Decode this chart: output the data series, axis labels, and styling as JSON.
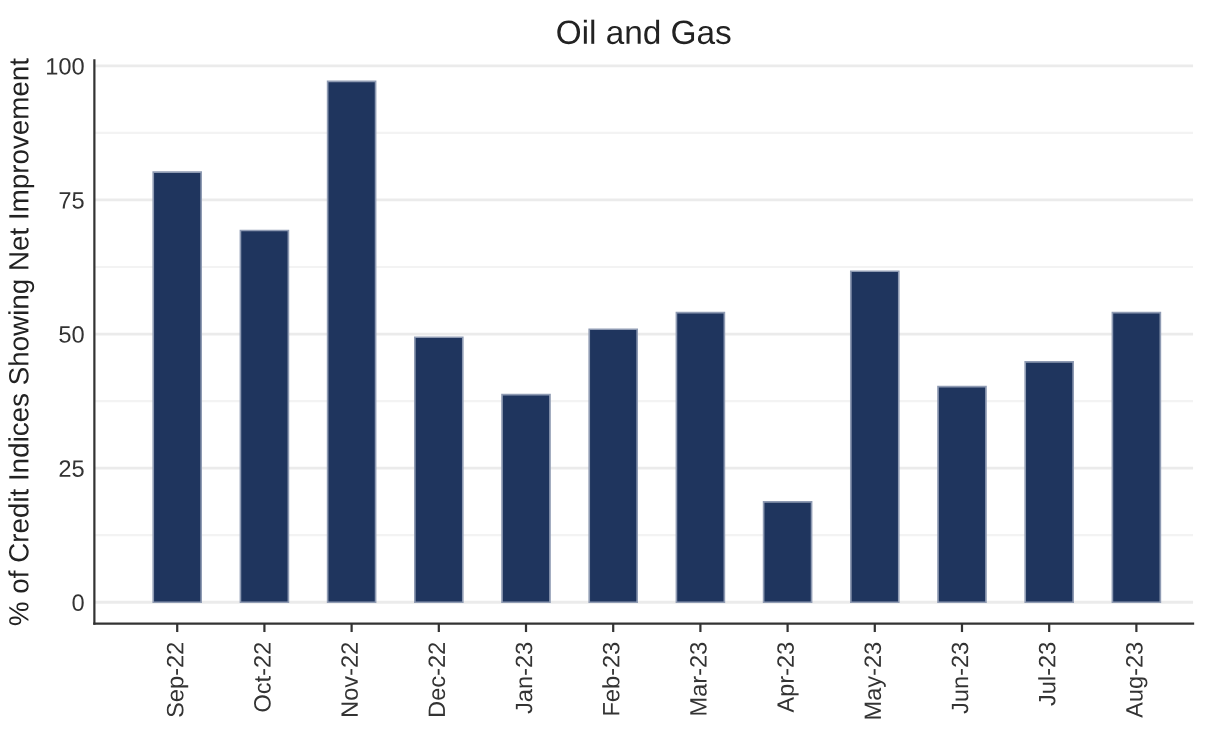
{
  "chart_data": {
    "type": "bar",
    "title": "Oil and Gas",
    "ylabel": "% of Credit Indices Showing Net Improvement",
    "categories": [
      "Sep-22",
      "Oct-22",
      "Nov-22",
      "Dec-22",
      "Jan-23",
      "Feb-23",
      "Mar-23",
      "Apr-23",
      "May-23",
      "Jun-23",
      "Jul-23",
      "Aug-23"
    ],
    "values": [
      80.2,
      69.3,
      97.1,
      49.4,
      38.7,
      50.9,
      54.0,
      18.7,
      61.7,
      40.2,
      44.8,
      54.0
    ],
    "color": "#1f355e",
    "ylim": [
      -4,
      101
    ],
    "yticks": [
      0,
      25,
      50,
      75,
      100
    ],
    "grid": "y",
    "legend": false
  }
}
